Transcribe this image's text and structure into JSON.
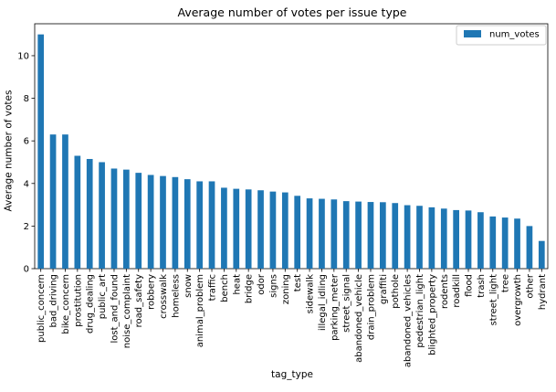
{
  "chart_data": {
    "type": "bar",
    "title": "Average number of votes per issue type",
    "xlabel": "tag_type",
    "ylabel": "Average number of votes",
    "ylim": [
      0,
      11.5
    ],
    "yticks": [
      0,
      2,
      4,
      6,
      8,
      10
    ],
    "legend_position": "top-right",
    "grid": false,
    "categories": [
      "public_concern",
      "bad_driving",
      "bike_concern",
      "prostitution",
      "drug_dealing",
      "public_art",
      "lost_and_found",
      "noise_complaint",
      "road_safety",
      "robbery",
      "crosswalk",
      "homeless",
      "snow",
      "animal_problem",
      "traffic",
      "bench",
      "heat",
      "bridge",
      "odor",
      "signs",
      "zoning",
      "test",
      "sidewalk",
      "illegal_idling",
      "parking_meter",
      "street_signal",
      "abandoned_vehicle",
      "drain_problem",
      "graffiti",
      "pothole",
      "abandoned_vehicles",
      "pedestrian_light",
      "blighted_property",
      "rodents",
      "roadkill",
      "flood",
      "trash",
      "street_light",
      "tree",
      "overgrowth",
      "other",
      "hydrant"
    ],
    "series": [
      {
        "name": "num_votes",
        "color": "#1f77b4",
        "values": [
          11.0,
          6.3,
          6.3,
          5.3,
          5.15,
          5.0,
          4.7,
          4.65,
          4.5,
          4.4,
          4.35,
          4.3,
          4.2,
          4.1,
          4.1,
          3.8,
          3.75,
          3.72,
          3.68,
          3.62,
          3.58,
          3.42,
          3.3,
          3.28,
          3.25,
          3.17,
          3.15,
          3.13,
          3.12,
          3.08,
          2.98,
          2.95,
          2.88,
          2.82,
          2.75,
          2.73,
          2.65,
          2.45,
          2.4,
          2.35,
          2.0,
          1.3
        ]
      }
    ]
  }
}
